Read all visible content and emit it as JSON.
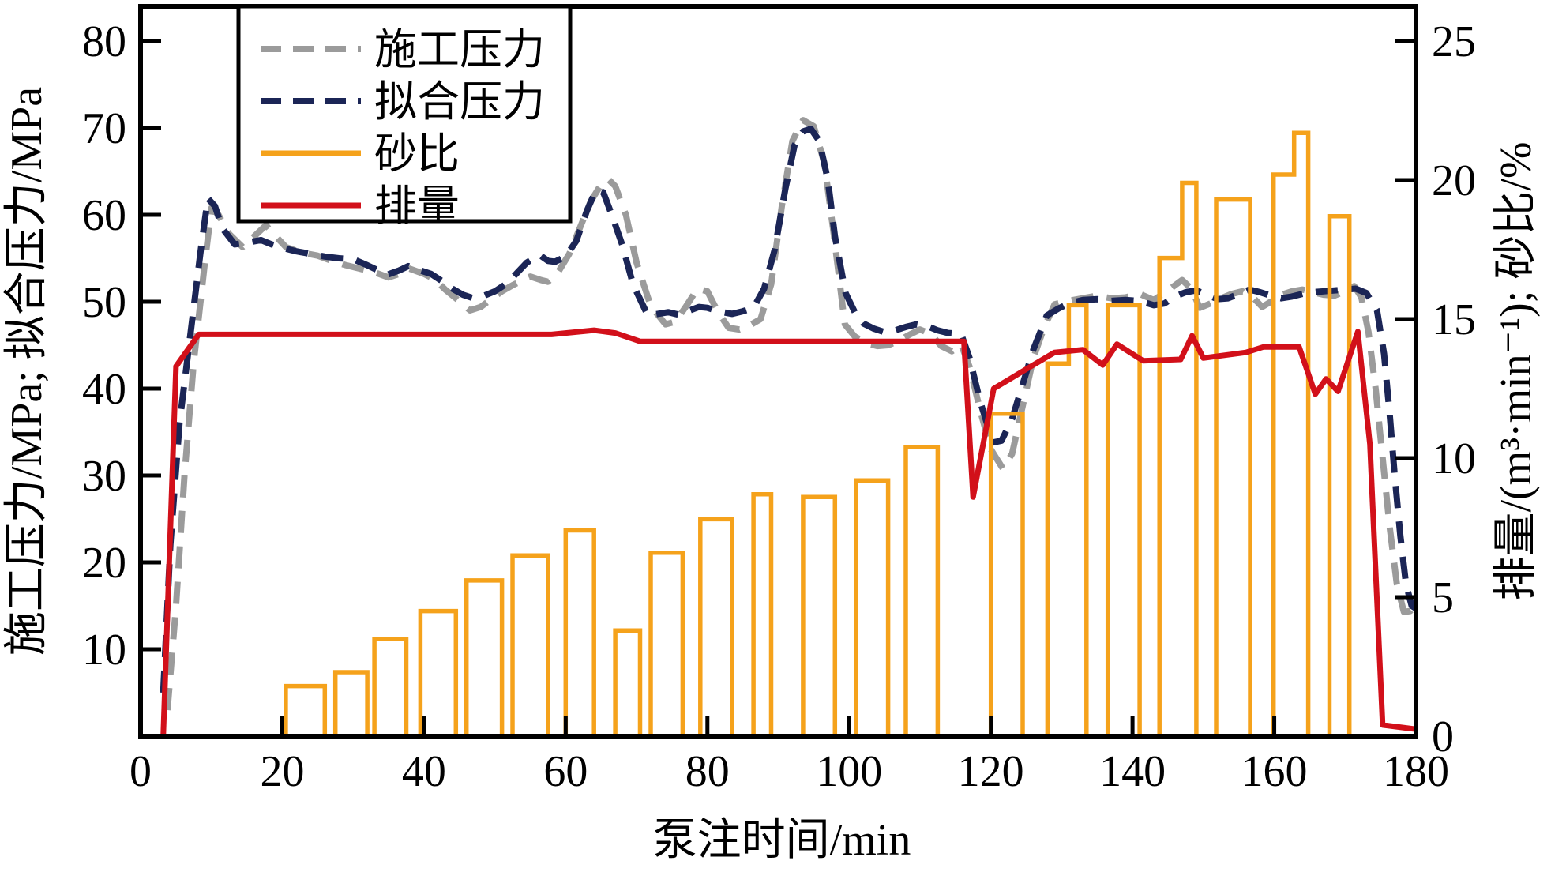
{
  "figure": {
    "background": "#ffffff",
    "axis_color": "#000000"
  },
  "chart_data": {
    "type": "line+bar combo (fracturing treatment curve)",
    "x_axis": {
      "label": "泵注时间/min",
      "min": 0,
      "max": 180,
      "ticks": [
        0,
        20,
        40,
        60,
        80,
        100,
        120,
        140,
        160,
        180
      ]
    },
    "y_left": {
      "label": "施工压力/MPa; 拟合压力/MPa",
      "min": 0,
      "max": 80,
      "ticks": [
        10,
        20,
        30,
        40,
        50,
        60,
        70,
        80
      ]
    },
    "y_right": {
      "label": "排量/(m³·min⁻¹); 砂比/%",
      "min": 0,
      "max": 25,
      "ticks": [
        0,
        5,
        10,
        15,
        20,
        25
      ]
    },
    "legend": {
      "position": "top-left",
      "entries": [
        {
          "label": "施工压力",
          "color": "#9b9b9b",
          "style": "dashed"
        },
        {
          "label": "拟合压力",
          "color": "#1b2556",
          "style": "dashed"
        },
        {
          "label": "砂比",
          "color": "#f5a21b",
          "style": "solid"
        },
        {
          "label": "排量",
          "color": "#d2101a",
          "style": "solid"
        }
      ]
    },
    "series": [
      {
        "name": "施工压力",
        "axis": "left",
        "type": "line",
        "style": "dashed",
        "color": "#9b9b9b",
        "points": [
          [
            3.8,
            3
          ],
          [
            5,
            15
          ],
          [
            6.2,
            30
          ],
          [
            7.5,
            43
          ],
          [
            9,
            54
          ],
          [
            10,
            60.8
          ],
          [
            11,
            60
          ],
          [
            12.5,
            57.8
          ],
          [
            14.4,
            56.3
          ],
          [
            16,
            57.5
          ],
          [
            17.7,
            58.8
          ],
          [
            19,
            57.6
          ],
          [
            20.5,
            56.3
          ],
          [
            22.5,
            55.7
          ],
          [
            25,
            55.3
          ],
          [
            27,
            54.7
          ],
          [
            29,
            54.2
          ],
          [
            31,
            53.8
          ],
          [
            33,
            53.4
          ],
          [
            35,
            52.8
          ],
          [
            36.5,
            53.2
          ],
          [
            38,
            53.8
          ],
          [
            40,
            53.2
          ],
          [
            41.5,
            52.6
          ],
          [
            43,
            51.4
          ],
          [
            44.5,
            50.4
          ],
          [
            46.5,
            49
          ],
          [
            48,
            49.4
          ],
          [
            49.5,
            50.3
          ],
          [
            51,
            51.2
          ],
          [
            52.5,
            51.9
          ],
          [
            55,
            52.9
          ],
          [
            56.5,
            52.5
          ],
          [
            57.5,
            52.3
          ],
          [
            59,
            53.5
          ],
          [
            60.5,
            55.5
          ],
          [
            62,
            58.5
          ],
          [
            63.5,
            61.5
          ],
          [
            65,
            63.5
          ],
          [
            66,
            64.1
          ],
          [
            67,
            63.3
          ],
          [
            68.5,
            60
          ],
          [
            70,
            54.5
          ],
          [
            72,
            49.5
          ],
          [
            74.1,
            47.4
          ],
          [
            75.5,
            47.7
          ],
          [
            77,
            49.5
          ],
          [
            78.6,
            51.5
          ],
          [
            80,
            51.2
          ],
          [
            81.5,
            48.8
          ],
          [
            83,
            47
          ],
          [
            84.5,
            46.8
          ],
          [
            86,
            47.3
          ],
          [
            87.5,
            48
          ],
          [
            89,
            52
          ],
          [
            90.5,
            61
          ],
          [
            92,
            68.5
          ],
          [
            93.5,
            70.9
          ],
          [
            95,
            70.2
          ],
          [
            96.5,
            66
          ],
          [
            97.8,
            58
          ],
          [
            99.4,
            47.4
          ],
          [
            100.8,
            46
          ],
          [
            102.5,
            45.2
          ],
          [
            104,
            44.9
          ],
          [
            105.5,
            45
          ],
          [
            107,
            45.5
          ],
          [
            108.5,
            46.2
          ],
          [
            110,
            46.8
          ],
          [
            111.5,
            46.3
          ],
          [
            113,
            44.9
          ],
          [
            114.5,
            44.3
          ],
          [
            115.8,
            45.1
          ],
          [
            117,
            42.5
          ],
          [
            118.5,
            37.5
          ],
          [
            120,
            33
          ],
          [
            121.7,
            30.8
          ],
          [
            123,
            32.5
          ],
          [
            124.5,
            38
          ],
          [
            126,
            43.5
          ],
          [
            127.5,
            47
          ],
          [
            129,
            49.7
          ],
          [
            131,
            50.1
          ],
          [
            133,
            50.4
          ],
          [
            135,
            50.7
          ],
          [
            137,
            50.4
          ],
          [
            139,
            50.5
          ],
          [
            141,
            50.9
          ],
          [
            143,
            50.2
          ],
          [
            145,
            51.3
          ],
          [
            147,
            52.5
          ],
          [
            148.3,
            51.5
          ],
          [
            149.5,
            49.3
          ],
          [
            151,
            49.8
          ],
          [
            152.5,
            50.4
          ],
          [
            154,
            50.9
          ],
          [
            155.5,
            51.2
          ],
          [
            157,
            50.5
          ],
          [
            158.3,
            49.4
          ],
          [
            159.5,
            50
          ],
          [
            161,
            50.8
          ],
          [
            162.5,
            51.2
          ],
          [
            164,
            51.4
          ],
          [
            165.5,
            51.1
          ],
          [
            167,
            50.8
          ],
          [
            168.5,
            50.7
          ],
          [
            170,
            51.2
          ],
          [
            171.3,
            51.8
          ],
          [
            172.3,
            50.5
          ],
          [
            173.3,
            46.5
          ],
          [
            174.3,
            40
          ],
          [
            175.3,
            32
          ],
          [
            176.3,
            24
          ],
          [
            177.3,
            17.5
          ],
          [
            178.3,
            14.3
          ],
          [
            179.2,
            14.4
          ],
          [
            180,
            15.2
          ]
        ]
      },
      {
        "name": "拟合压力",
        "axis": "left",
        "type": "line",
        "style": "dashed",
        "color": "#1b2556",
        "points": [
          [
            3.2,
            5
          ],
          [
            4.2,
            22
          ],
          [
            5.5,
            36
          ],
          [
            7,
            46
          ],
          [
            8.5,
            56
          ],
          [
            9.5,
            61.9
          ],
          [
            10.5,
            61
          ],
          [
            11.5,
            58.5
          ],
          [
            13.3,
            56.6
          ],
          [
            15,
            56.8
          ],
          [
            17,
            57.1
          ],
          [
            18.5,
            56.6
          ],
          [
            20,
            56.2
          ],
          [
            22,
            55.8
          ],
          [
            24,
            55.5
          ],
          [
            26,
            55.2
          ],
          [
            28,
            55
          ],
          [
            30,
            54.9
          ],
          [
            32,
            54.2
          ],
          [
            34.8,
            53.1
          ],
          [
            36.5,
            53.6
          ],
          [
            37.8,
            54.1
          ],
          [
            39.5,
            53.6
          ],
          [
            41,
            53.2
          ],
          [
            42.5,
            52.4
          ],
          [
            44,
            51.5
          ],
          [
            45.5,
            50.8
          ],
          [
            47,
            50.4
          ],
          [
            48.5,
            50.7
          ],
          [
            50,
            51.2
          ],
          [
            51.5,
            52
          ],
          [
            53,
            53.2
          ],
          [
            54.5,
            54.5
          ],
          [
            56.3,
            55.4
          ],
          [
            57.5,
            54.7
          ],
          [
            58.5,
            54.6
          ],
          [
            60,
            55.2
          ],
          [
            61.5,
            57
          ],
          [
            63,
            60.5
          ],
          [
            64.3,
            62.9
          ],
          [
            65.3,
            62.6
          ],
          [
            66.5,
            60
          ],
          [
            68,
            56.5
          ],
          [
            69.5,
            52
          ],
          [
            71.6,
            48.4
          ],
          [
            73,
            48.6
          ],
          [
            74.5,
            48.8
          ],
          [
            76,
            48.5
          ],
          [
            77.5,
            49
          ],
          [
            78.8,
            49.4
          ],
          [
            80,
            49.3
          ],
          [
            81.5,
            48.9
          ],
          [
            83.5,
            48.6
          ],
          [
            85,
            48.9
          ],
          [
            86.5,
            49.3
          ],
          [
            88,
            51.5
          ],
          [
            89.5,
            56
          ],
          [
            91,
            63
          ],
          [
            92.3,
            68
          ],
          [
            93.5,
            69.6
          ],
          [
            94.6,
            69.9
          ],
          [
            95.8,
            68.5
          ],
          [
            97,
            64
          ],
          [
            98,
            57.5
          ],
          [
            99.5,
            51
          ],
          [
            100.8,
            48.8
          ],
          [
            102,
            47.5
          ],
          [
            103.5,
            46.9
          ],
          [
            105,
            46.5
          ],
          [
            106.5,
            46.7
          ],
          [
            108,
            47.1
          ],
          [
            109.5,
            47.4
          ],
          [
            111,
            47.2
          ],
          [
            112.5,
            46.7
          ],
          [
            114,
            46.4
          ],
          [
            115.8,
            46.3
          ],
          [
            117,
            43.5
          ],
          [
            118.5,
            38.5
          ],
          [
            120.3,
            33.8
          ],
          [
            121.5,
            34
          ],
          [
            123,
            36.5
          ],
          [
            124.5,
            40.5
          ],
          [
            126,
            44.5
          ],
          [
            127.9,
            48.4
          ],
          [
            129.5,
            49.2
          ],
          [
            131,
            49.8
          ],
          [
            133,
            50.2
          ],
          [
            135,
            50.3
          ],
          [
            137,
            50.1
          ],
          [
            139,
            50.2
          ],
          [
            141,
            50.1
          ],
          [
            143,
            49.6
          ],
          [
            144.5,
            49.8
          ],
          [
            146,
            50.6
          ],
          [
            147.5,
            51.1
          ],
          [
            149,
            51.3
          ],
          [
            150.5,
            50.8
          ],
          [
            152,
            50.3
          ],
          [
            153.5,
            50.4
          ],
          [
            155,
            50.9
          ],
          [
            156.5,
            51.4
          ],
          [
            158,
            51.1
          ],
          [
            159.5,
            50.7
          ],
          [
            161,
            50.4
          ],
          [
            162.5,
            50.6
          ],
          [
            164,
            50.9
          ],
          [
            165.5,
            51.1
          ],
          [
            167,
            51.2
          ],
          [
            168.5,
            51.3
          ],
          [
            170,
            51.4
          ],
          [
            171.5,
            51.5
          ],
          [
            173,
            51
          ],
          [
            174.5,
            49
          ],
          [
            175.5,
            44
          ],
          [
            176.3,
            37
          ],
          [
            177,
            30
          ],
          [
            177.8,
            23
          ],
          [
            178.6,
            17.5
          ],
          [
            179.4,
            15
          ],
          [
            180,
            14.7
          ]
        ]
      },
      {
        "name": "砂比",
        "axis": "right",
        "type": "step-bars",
        "color": "#f5a21b",
        "baseline": 0,
        "bars": [
          [
            20.5,
            26,
            1.8
          ],
          [
            27.5,
            32,
            2.3
          ],
          [
            33,
            37.5,
            3.5
          ],
          [
            39.5,
            44.5,
            4.5
          ],
          [
            46,
            51,
            5.6
          ],
          [
            52.5,
            57.5,
            6.5
          ],
          [
            60,
            64,
            7.4
          ],
          [
            67,
            70.5,
            3.8
          ],
          [
            72,
            76.5,
            6.6
          ],
          [
            79,
            83.5,
            7.8
          ],
          [
            86.5,
            89,
            8.7
          ],
          [
            93.5,
            98,
            8.6
          ],
          [
            101,
            105.5,
            9.2
          ],
          [
            108,
            112.5,
            10.4
          ],
          [
            120,
            124.5,
            11.6
          ],
          [
            128,
            131,
            13.4
          ],
          [
            131,
            133.5,
            15.5
          ],
          [
            136.5,
            141,
            15.5
          ],
          [
            143.8,
            147,
            17.2
          ],
          [
            147,
            149,
            19.9
          ],
          [
            151.8,
            156.6,
            19.3
          ],
          [
            159.9,
            162.8,
            20.2
          ],
          [
            162.8,
            164.8,
            21.7
          ],
          [
            167.8,
            170.6,
            18.7
          ]
        ]
      },
      {
        "name": "排量",
        "axis": "right",
        "type": "line",
        "style": "solid",
        "color": "#d2101a",
        "points": [
          [
            3.2,
            0
          ],
          [
            5,
            13.3
          ],
          [
            8.2,
            14.45
          ],
          [
            58,
            14.45
          ],
          [
            64,
            14.6
          ],
          [
            67,
            14.5
          ],
          [
            70.5,
            14.2
          ],
          [
            116.2,
            14.2
          ],
          [
            117.5,
            8.6
          ],
          [
            120.4,
            12.5
          ],
          [
            125,
            13.2
          ],
          [
            129,
            13.8
          ],
          [
            133,
            13.9
          ],
          [
            135.8,
            13.35
          ],
          [
            137.8,
            14.1
          ],
          [
            141.5,
            13.5
          ],
          [
            146.8,
            13.55
          ],
          [
            148.4,
            14.4
          ],
          [
            150,
            13.6
          ],
          [
            156,
            13.8
          ],
          [
            158.5,
            14
          ],
          [
            163.5,
            14
          ],
          [
            165.8,
            12.3
          ],
          [
            167.3,
            12.85
          ],
          [
            169,
            12.4
          ],
          [
            171.8,
            14.55
          ],
          [
            173.5,
            10.5
          ],
          [
            175.3,
            0.4
          ],
          [
            180,
            0.25
          ]
        ]
      }
    ]
  }
}
